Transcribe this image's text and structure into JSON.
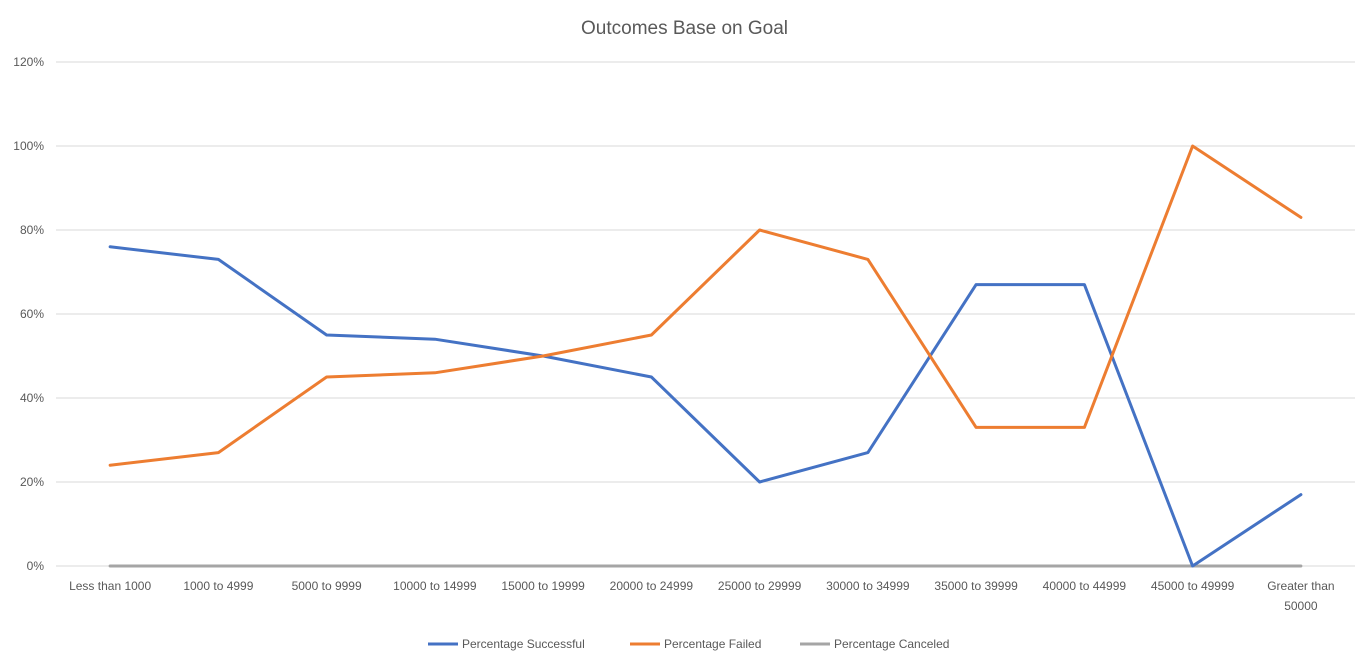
{
  "chart_data": {
    "type": "line",
    "title": "Outcomes Base on Goal",
    "xlabel": "",
    "ylabel": "",
    "ylim": [
      0,
      1.2
    ],
    "y_ticks": [
      0,
      0.2,
      0.4,
      0.6,
      0.8,
      1.0,
      1.2
    ],
    "y_tick_labels": [
      "0%",
      "20%",
      "40%",
      "60%",
      "80%",
      "100%",
      "120%"
    ],
    "categories": [
      "Less than 1000",
      "1000 to 4999",
      "5000 to 9999",
      "10000 to 14999",
      "15000 to 19999",
      "20000 to 24999",
      "25000 to 29999",
      "30000 to 34999",
      "35000 to 39999",
      "40000 to 44999",
      "45000 to 49999",
      "Greater than 50000"
    ],
    "category_label_lines": [
      [
        "Less than 1000"
      ],
      [
        "1000 to 4999"
      ],
      [
        "5000 to 9999"
      ],
      [
        "10000 to 14999"
      ],
      [
        "15000 to 19999"
      ],
      [
        "20000 to 24999"
      ],
      [
        "25000 to 29999"
      ],
      [
        "30000 to 34999"
      ],
      [
        "35000 to 39999"
      ],
      [
        "40000 to 44999"
      ],
      [
        "45000 to 49999"
      ],
      [
        "Greater than",
        "50000"
      ]
    ],
    "series": [
      {
        "name": "Percentage Successful",
        "color": "#4472C4",
        "values": [
          0.76,
          0.73,
          0.55,
          0.54,
          0.5,
          0.45,
          0.2,
          0.27,
          0.67,
          0.67,
          0.0,
          0.17
        ]
      },
      {
        "name": "Percentage Failed",
        "color": "#ED7D31",
        "values": [
          0.24,
          0.27,
          0.45,
          0.46,
          0.5,
          0.55,
          0.8,
          0.73,
          0.33,
          0.33,
          1.0,
          0.83
        ]
      },
      {
        "name": "Percentage Canceled",
        "color": "#A5A5A5",
        "values": [
          0,
          0,
          0,
          0,
          0,
          0,
          0,
          0,
          0,
          0,
          0,
          0
        ]
      }
    ],
    "grid": true,
    "legend_position": "bottom"
  }
}
